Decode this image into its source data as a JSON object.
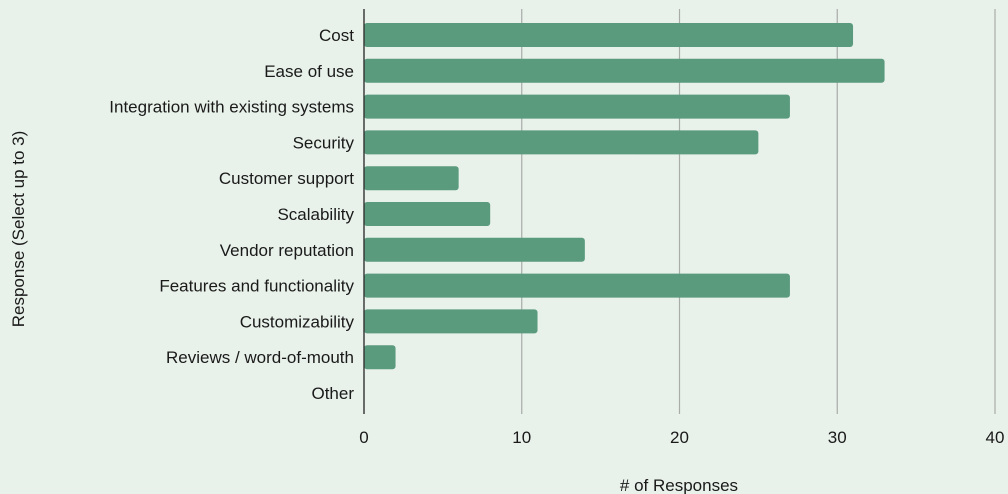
{
  "chart_data": {
    "type": "bar",
    "orientation": "horizontal",
    "categories": [
      "Cost",
      "Ease of use",
      "Integration with existing systems",
      "Security",
      "Customer support",
      "Scalability",
      "Vendor reputation",
      "Features and functionality",
      "Customizability",
      "Reviews / word-of-mouth",
      "Other"
    ],
    "values": [
      31,
      33,
      27,
      25,
      6,
      8,
      14,
      27,
      11,
      2,
      0
    ],
    "xlabel": "# of Responses",
    "ylabel": "Response (Select up to 3)",
    "xlim": [
      0,
      40
    ],
    "xticks": [
      0,
      10,
      20,
      30,
      40
    ],
    "grid": true,
    "bar_color": "#5a9b7d"
  }
}
